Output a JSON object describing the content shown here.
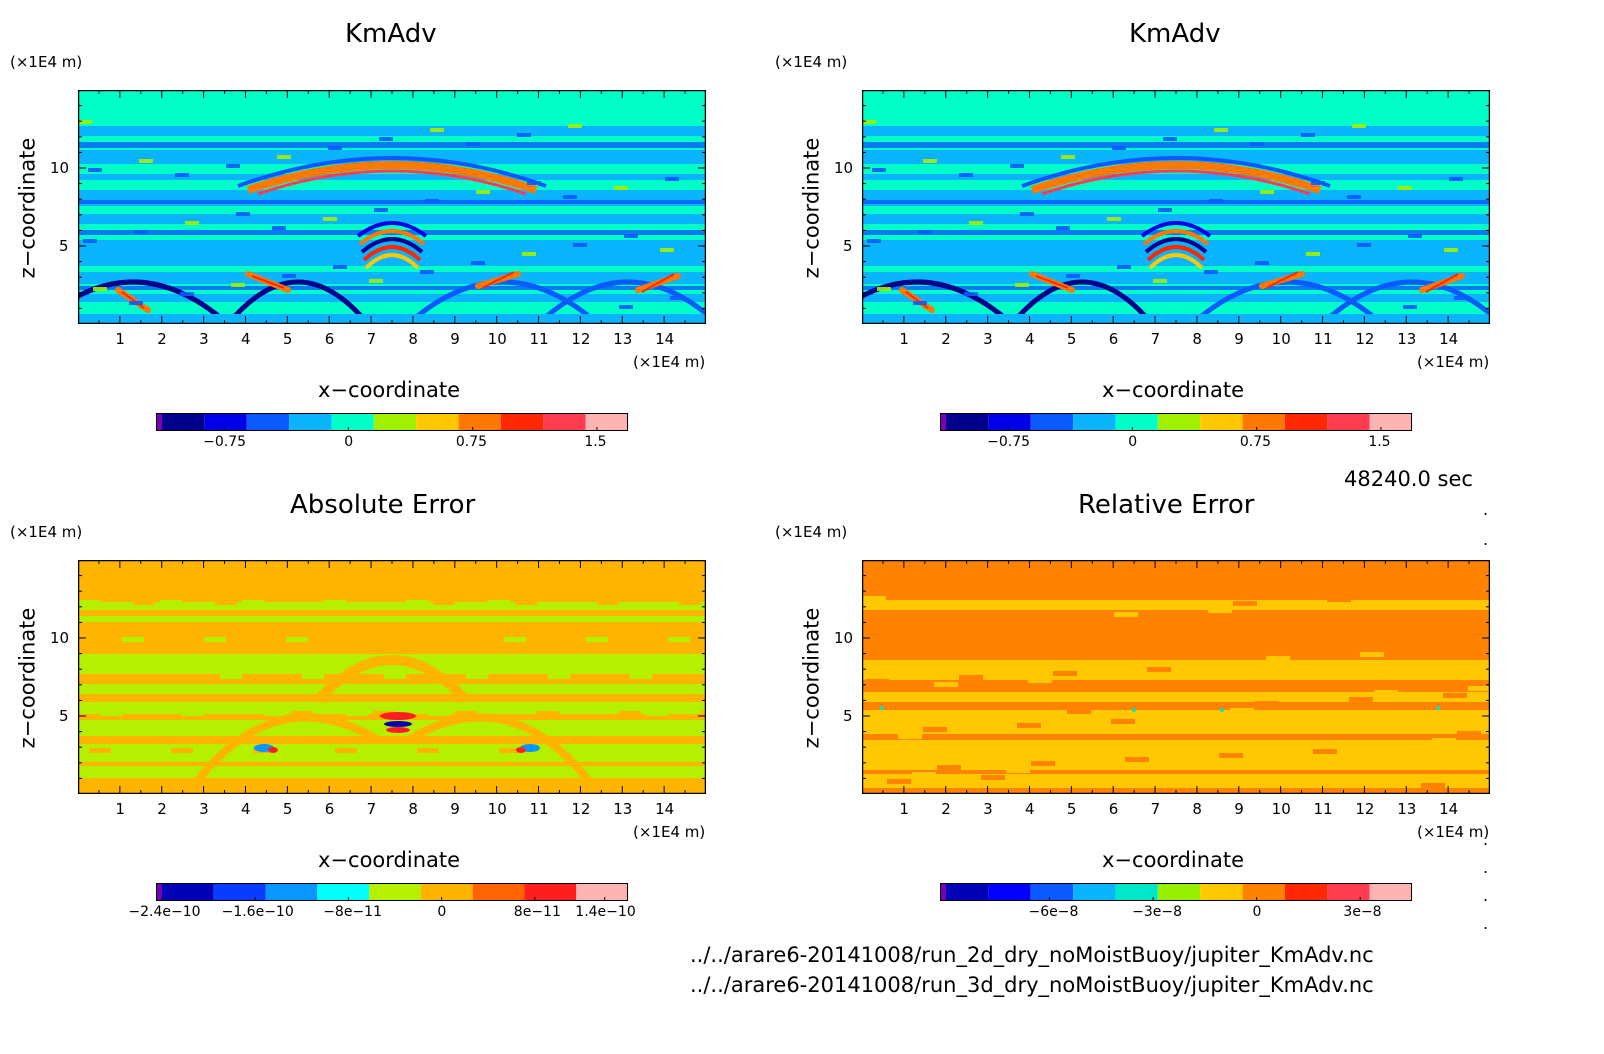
{
  "time_label": "48240.0 sec",
  "files": [
    "../../arare6-20141008/run_2d_dry_noMoistBuoy/jupiter_KmAdv.nc",
    "../../arare6-20141008/run_3d_dry_noMoistBuoy/jupiter_KmAdv.nc"
  ],
  "chart_data": [
    {
      "type": "heatmap",
      "title": "KmAdv",
      "xlabel": "x−coordinate",
      "ylabel": "z−coordinate",
      "x_unit": "(×1E4 m)",
      "y_unit": "(×1E4 m)",
      "xlim": [
        0,
        15
      ],
      "ylim": [
        0,
        15
      ],
      "x_ticks": [
        1,
        2,
        3,
        4,
        5,
        6,
        7,
        8,
        9,
        10,
        11,
        12,
        13,
        14
      ],
      "y_ticks": [
        5,
        10
      ],
      "colorbar": {
        "colors": [
          "#7a00b0",
          "#00008c",
          "#0000e6",
          "#0a5aff",
          "#0ab4ff",
          "#00ffc8",
          "#a0f000",
          "#ffc800",
          "#ff7800",
          "#ff2800",
          "#ff3c50",
          "#ffb4b4"
        ],
        "labels": [
          "−0.75",
          "0",
          "0.75",
          "1.5"
        ],
        "label_values": [
          -0.75,
          0,
          0.75,
          1.5
        ],
        "vmin": -1.125,
        "vmax": 1.6875
      }
    },
    {
      "type": "heatmap",
      "title": "KmAdv",
      "xlabel": "x−coordinate",
      "ylabel": "z−coordinate",
      "x_unit": "(×1E4 m)",
      "y_unit": "(×1E4 m)",
      "xlim": [
        0,
        15
      ],
      "ylim": [
        0,
        15
      ],
      "x_ticks": [
        1,
        2,
        3,
        4,
        5,
        6,
        7,
        8,
        9,
        10,
        11,
        12,
        13,
        14
      ],
      "y_ticks": [
        5,
        10
      ],
      "colorbar": {
        "colors": [
          "#7a00b0",
          "#00008c",
          "#0000e6",
          "#0a5aff",
          "#0ab4ff",
          "#00ffc8",
          "#a0f000",
          "#ffc800",
          "#ff7800",
          "#ff2800",
          "#ff3c50",
          "#ffb4b4"
        ],
        "labels": [
          "−0.75",
          "0",
          "0.75",
          "1.5"
        ],
        "label_values": [
          -0.75,
          0,
          0.75,
          1.5
        ],
        "vmin": -1.125,
        "vmax": 1.6875
      }
    },
    {
      "type": "heatmap",
      "title": "Absolute Error",
      "xlabel": "x−coordinate",
      "ylabel": "z−coordinate",
      "x_unit": "(×1E4 m)",
      "y_unit": "(×1E4 m)",
      "xlim": [
        0,
        15
      ],
      "ylim": [
        0,
        15
      ],
      "x_ticks": [
        1,
        2,
        3,
        4,
        5,
        6,
        7,
        8,
        9,
        10,
        11,
        12,
        13,
        14
      ],
      "y_ticks": [
        5,
        10
      ],
      "colorbar": {
        "colors": [
          "#7800b4",
          "#0000b4",
          "#0a3cff",
          "#0a96ff",
          "#00ffff",
          "#b4f000",
          "#ffb400",
          "#ff6400",
          "#ff1e1e",
          "#ffb4b4"
        ],
        "labels": [
          "−2.4e−10",
          "−1.6e−10",
          "−8e−11",
          "0",
          "8e−11",
          "1.4e−10"
        ],
        "label_values": [
          -2.4e-10,
          -1.6e-10,
          -8e-11,
          0,
          8e-11,
          1.4e-10
        ],
        "vmin": -2.4e-10,
        "vmax": 1.6e-10
      }
    },
    {
      "type": "heatmap",
      "title": "Relative Error",
      "xlabel": "x−coordinate",
      "ylabel": "z−coordinate",
      "x_unit": "(×1E4 m)",
      "y_unit": "(×1E4 m)",
      "xlim": [
        0,
        15
      ],
      "ylim": [
        0,
        15
      ],
      "x_ticks": [
        1,
        2,
        3,
        4,
        5,
        6,
        7,
        8,
        9,
        10,
        11,
        12,
        13,
        14
      ],
      "y_ticks": [
        5,
        10
      ],
      "colorbar": {
        "colors": [
          "#7800b4",
          "#0000b4",
          "#0000ff",
          "#0a5aff",
          "#0ab4ff",
          "#00e6c8",
          "#96f000",
          "#ffc800",
          "#ff8200",
          "#ff2800",
          "#ff3c50",
          "#ffb4b4"
        ],
        "labels": [
          "−6e−8",
          "−3e−8",
          "0",
          "3e−8"
        ],
        "label_values": [
          -6e-08,
          -3e-08,
          0,
          3e-08
        ],
        "vmin": -9e-08,
        "vmax": 4.5e-08
      }
    }
  ]
}
